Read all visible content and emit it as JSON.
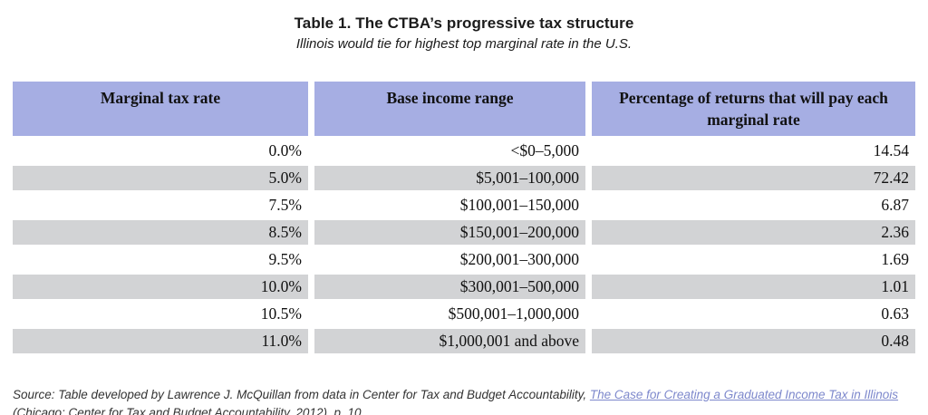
{
  "title": "Table 1. The CTBA’s progressive tax structure",
  "subtitle": "Illinois would tie for highest top marginal rate in the U.S.",
  "table": {
    "columns": [
      "Marginal tax rate",
      "Base income range",
      "Percentage of returns that will pay each marginal rate"
    ],
    "rows": [
      [
        "0.0%",
        "<$0–5,000",
        "14.54"
      ],
      [
        "5.0%",
        "$5,001–100,000",
        "72.42"
      ],
      [
        "7.5%",
        "$100,001–150,000",
        "6.87"
      ],
      [
        "8.5%",
        "$150,001–200,000",
        "2.36"
      ],
      [
        "9.5%",
        "$200,001–300,000",
        "1.69"
      ],
      [
        "10.0%",
        "$300,001–500,000",
        "1.01"
      ],
      [
        "10.5%",
        "$500,001–1,000,000",
        "0.63"
      ],
      [
        "11.0%",
        "$1,000,001 and above",
        "0.48"
      ]
    ]
  },
  "source": {
    "prefix": "Source: Table developed by Lawrence J. McQuillan from data in Center for Tax and Budget Accountability, ",
    "link_text": "The Case for Creating a Graduated Income Tax in Illinois",
    "suffix": " (Chicago: Center for Tax and Budget Accountability, 2012), p. 10"
  },
  "colors": {
    "header_bg": "#a6aee3",
    "row_alt_bg": "#d2d3d5",
    "link": "#7d88cc"
  }
}
